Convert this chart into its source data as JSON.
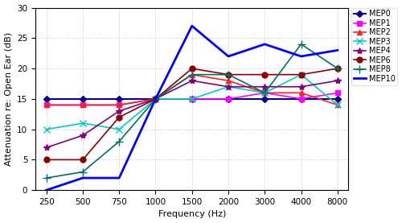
{
  "freqs": [
    250,
    500,
    750,
    1000,
    1500,
    2000,
    3000,
    4000,
    8000
  ],
  "freq_labels": [
    "250",
    "500",
    "750",
    "1000",
    "1500",
    "2000",
    "3000",
    "4000",
    "8000"
  ],
  "series": {
    "MEP0": {
      "values": [
        15,
        15,
        15,
        15,
        15,
        15,
        15,
        15,
        15
      ],
      "color": "#00008B",
      "marker": "D",
      "linewidth": 1.5,
      "markersize": 4,
      "markerfacecolor": "#00008B"
    },
    "MEP1": {
      "values": [
        14,
        14,
        14,
        15,
        15,
        15,
        16,
        15,
        16
      ],
      "color": "#FF00FF",
      "marker": "s",
      "linewidth": 1.2,
      "markersize": 4,
      "markerfacecolor": "#FF00FF"
    },
    "MEP2": {
      "values": [
        14,
        14,
        14,
        15,
        19,
        18,
        16,
        16,
        14
      ],
      "color": "#FF2020",
      "marker": "^",
      "linewidth": 1.2,
      "markersize": 5,
      "markerfacecolor": "#FF2020"
    },
    "MEP3": {
      "values": [
        10,
        11,
        10,
        15,
        15,
        17,
        16,
        19,
        14
      ],
      "color": "#00CCCC",
      "marker": "x",
      "linewidth": 1.2,
      "markersize": 6,
      "markerfacecolor": "#00CCCC"
    },
    "MEP4": {
      "values": [
        7,
        9,
        13,
        15,
        18,
        17,
        17,
        17,
        18
      ],
      "color": "#800080",
      "marker": "*",
      "linewidth": 1.2,
      "markersize": 6,
      "markerfacecolor": "#800080"
    },
    "MEP6": {
      "values": [
        5,
        5,
        12,
        15,
        20,
        19,
        19,
        19,
        20
      ],
      "color": "#8B0000",
      "marker": "o",
      "linewidth": 1.2,
      "markersize": 5,
      "markerfacecolor": "#8B0000"
    },
    "MEP8": {
      "values": [
        2,
        3,
        8,
        15,
        19,
        19,
        16,
        24,
        20
      ],
      "color": "#007060",
      "marker": "+",
      "linewidth": 1.2,
      "markersize": 7,
      "markerfacecolor": "#007060"
    },
    "MEP10": {
      "values": [
        0,
        2,
        2,
        15,
        27,
        22,
        24,
        22,
        23
      ],
      "color": "#0000FF",
      "marker": "None",
      "linewidth": 2.0,
      "markersize": 0,
      "markerfacecolor": "#0000FF"
    }
  },
  "xlabel": "Frequency (Hz)",
  "ylabel": "Attenuation re: Open Ear (dB)",
  "ylim": [
    0,
    30
  ],
  "yticks": [
    0,
    5,
    10,
    15,
    20,
    25,
    30
  ],
  "grid_color": "#AAAAAA",
  "background_color": "#FFFFFF",
  "legend_fontsize": 7.0,
  "axis_label_fontsize": 8,
  "tick_fontsize": 7.5
}
